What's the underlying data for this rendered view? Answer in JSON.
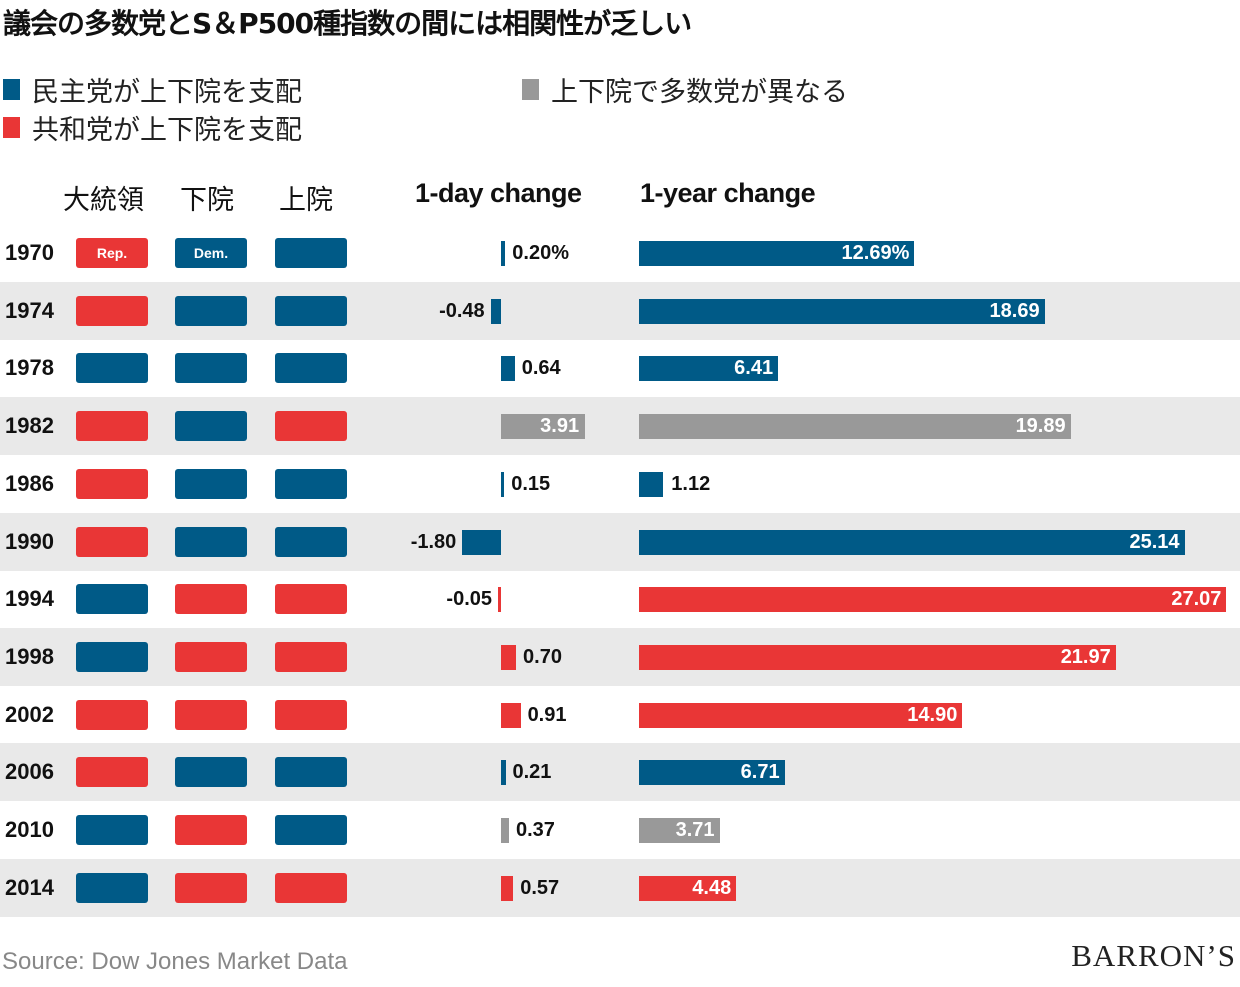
{
  "title": "議会の多数党とS＆P500種指数の間には相関性が乏しい",
  "legend": [
    {
      "label": "民主党が上下院を支配",
      "color": "#005a87"
    },
    {
      "label": "共和党が上下院を支配",
      "color": "#e93636"
    },
    {
      "label": "上下院で多数党が異なる",
      "color": "#999999"
    }
  ],
  "columns": {
    "president": "大統領",
    "house": "下院",
    "senate": "上院",
    "one_day": "1-day change",
    "one_year": "1-year change"
  },
  "colors": {
    "dem": "#005a87",
    "rep": "#e93636",
    "split": "#999999"
  },
  "pill_labels": {
    "rep": "Rep.",
    "dem": "Dem."
  },
  "chart_data": {
    "type": "bar",
    "categories": [
      "1970",
      "1974",
      "1978",
      "1982",
      "1986",
      "1990",
      "1994",
      "1998",
      "2002",
      "2006",
      "2010",
      "2014"
    ],
    "president": [
      "rep",
      "rep",
      "dem",
      "rep",
      "rep",
      "rep",
      "dem",
      "dem",
      "rep",
      "rep",
      "dem",
      "dem"
    ],
    "house": [
      "dem",
      "dem",
      "dem",
      "dem",
      "dem",
      "dem",
      "rep",
      "rep",
      "rep",
      "dem",
      "rep",
      "rep"
    ],
    "senate": [
      "dem",
      "dem",
      "dem",
      "rep",
      "dem",
      "dem",
      "rep",
      "rep",
      "rep",
      "dem",
      "dem",
      "rep"
    ],
    "control": [
      "dem",
      "dem",
      "dem",
      "split",
      "dem",
      "dem",
      "rep",
      "rep",
      "rep",
      "dem",
      "split",
      "rep"
    ],
    "series": [
      {
        "name": "1-day change",
        "values": [
          0.2,
          -0.48,
          0.64,
          3.91,
          0.15,
          -1.8,
          -0.05,
          0.7,
          0.91,
          0.21,
          0.37,
          0.57
        ],
        "labels": [
          "0.20%",
          "-0.48",
          "0.64",
          "3.91",
          "0.15",
          "-1.80",
          "-0.05",
          "0.70",
          "0.91",
          "0.21",
          "0.37",
          "0.57"
        ]
      },
      {
        "name": "1-year change",
        "values": [
          12.69,
          18.69,
          6.41,
          19.89,
          1.12,
          25.14,
          27.07,
          21.97,
          14.9,
          6.71,
          3.71,
          4.48
        ],
        "labels": [
          "12.69%",
          "18.69",
          "6.41",
          "19.89",
          "1.12",
          "25.14",
          "27.07",
          "21.97",
          "14.90",
          "6.71",
          "3.71",
          "4.48"
        ]
      }
    ]
  },
  "source": "Source: Dow Jones Market Data",
  "brand": "BARRON’S"
}
